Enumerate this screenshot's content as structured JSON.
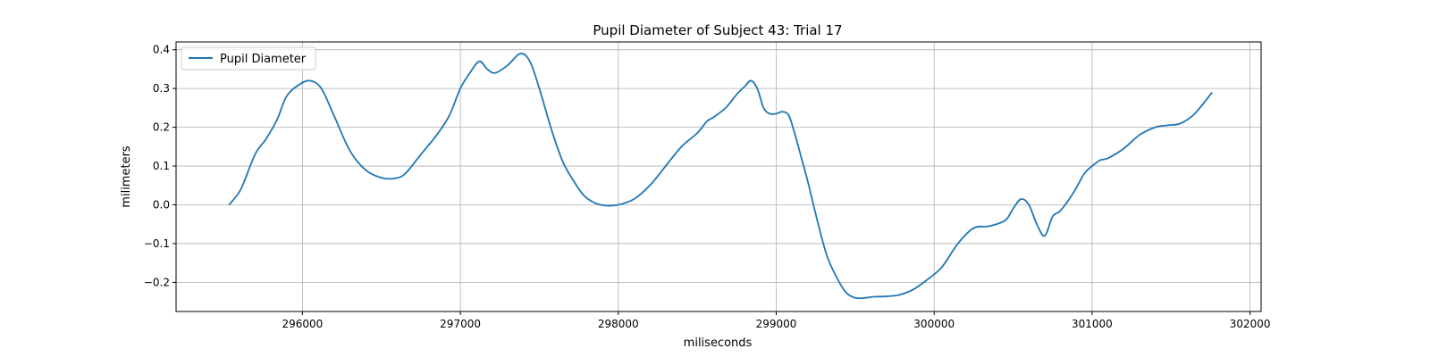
{
  "chart_data": {
    "type": "line",
    "title": "Pupil Diameter of Subject 43: Trial 17",
    "xlabel": "miliseconds",
    "ylabel": "milimeters",
    "xlim": [
      295200,
      302070
    ],
    "ylim": [
      -0.275,
      0.42
    ],
    "xticks": [
      296000,
      297000,
      298000,
      299000,
      300000,
      301000,
      302000
    ],
    "yticks": [
      -0.2,
      -0.1,
      0.0,
      0.1,
      0.2,
      0.3,
      0.4
    ],
    "xtick_labels": [
      "296000",
      "297000",
      "298000",
      "299000",
      "300000",
      "301000",
      "302000"
    ],
    "ytick_labels": [
      "−0.2",
      "−0.1",
      "0.0",
      "0.1",
      "0.2",
      "0.3",
      "0.4"
    ],
    "grid": true,
    "legend": "top-left",
    "series": [
      {
        "name": "Pupil Diameter",
        "color": "#1f77b4",
        "x": [
          295535,
          295610,
          295700,
          295770,
          295840,
          295900,
          295980,
          296050,
          296120,
          296200,
          296300,
          296400,
          296500,
          296580,
          296650,
          296750,
          296850,
          296930,
          297000,
          297060,
          297120,
          297170,
          297220,
          297300,
          297380,
          297440,
          297500,
          297580,
          297650,
          297720,
          297780,
          297850,
          297920,
          298000,
          298100,
          298200,
          298300,
          298400,
          298500,
          298560,
          298600,
          298680,
          298750,
          298800,
          298840,
          298880,
          298920,
          298960,
          299000,
          299040,
          299080,
          299120,
          299160,
          299200,
          299260,
          299320,
          299380,
          299440,
          299500,
          299560,
          299620,
          299700,
          299780,
          299860,
          299950,
          300050,
          300150,
          300250,
          300350,
          300450,
          300500,
          300550,
          300600,
          300650,
          300700,
          300750,
          300800,
          300880,
          300950,
          301000,
          301050,
          301100,
          301200,
          301300,
          301400,
          301480,
          301560,
          301650,
          301760
        ],
        "y": [
          0.0,
          0.04,
          0.13,
          0.17,
          0.22,
          0.28,
          0.31,
          0.32,
          0.3,
          0.23,
          0.14,
          0.09,
          0.07,
          0.068,
          0.08,
          0.13,
          0.18,
          0.23,
          0.3,
          0.34,
          0.37,
          0.35,
          0.34,
          0.36,
          0.39,
          0.37,
          0.3,
          0.19,
          0.11,
          0.06,
          0.025,
          0.005,
          -0.002,
          0.0,
          0.015,
          0.05,
          0.1,
          0.15,
          0.185,
          0.215,
          0.225,
          0.25,
          0.285,
          0.305,
          0.32,
          0.3,
          0.25,
          0.235,
          0.235,
          0.24,
          0.23,
          0.18,
          0.12,
          0.06,
          -0.04,
          -0.13,
          -0.185,
          -0.225,
          -0.24,
          -0.24,
          -0.237,
          -0.236,
          -0.232,
          -0.22,
          -0.195,
          -0.16,
          -0.1,
          -0.06,
          -0.055,
          -0.04,
          -0.01,
          0.015,
          0.0,
          -0.05,
          -0.08,
          -0.03,
          -0.015,
          0.03,
          0.08,
          0.1,
          0.115,
          0.12,
          0.145,
          0.18,
          0.2,
          0.205,
          0.21,
          0.235,
          0.29
        ]
      }
    ]
  }
}
